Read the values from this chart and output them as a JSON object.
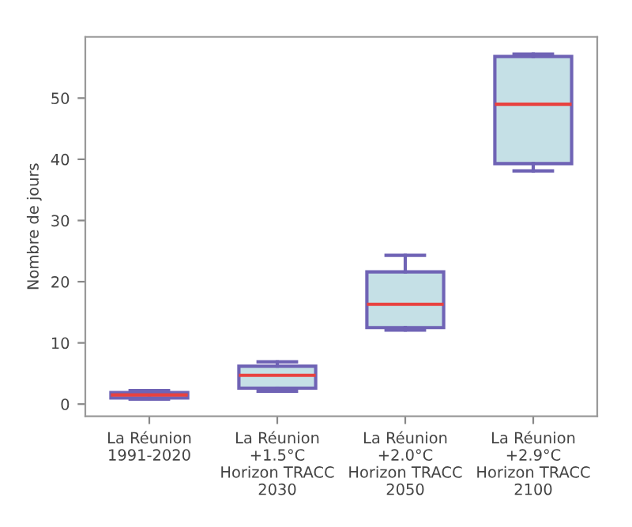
{
  "chart_data": {
    "type": "box",
    "ylabel": "Nombre de jours",
    "categories": [
      "La Réunion\n1991-2020",
      "La Réunion\n+1.5°C\nHorizon TRACC\n2030",
      "La Réunion\n+2.0°C\nHorizon TRACC\n2050",
      "La Réunion\n+2.9°C\nHorizon TRACC\n2100"
    ],
    "boxes": [
      {
        "low": 0.8,
        "q1": 1.0,
        "median": 1.5,
        "q3": 1.9,
        "high": 2.2
      },
      {
        "low": 2.1,
        "q1": 2.6,
        "median": 4.7,
        "q3": 6.2,
        "high": 6.9
      },
      {
        "low": 12.1,
        "q1": 12.5,
        "median": 16.3,
        "q3": 21.6,
        "high": 24.3
      },
      {
        "low": 38.1,
        "q1": 39.3,
        "median": 49.0,
        "q3": 56.8,
        "high": 57.2
      }
    ],
    "color": "#6f63b5",
    "ylim": [
      -2,
      60
    ],
    "yticks": [
      0,
      10,
      20,
      30,
      40,
      50
    ],
    "grid": false
  }
}
